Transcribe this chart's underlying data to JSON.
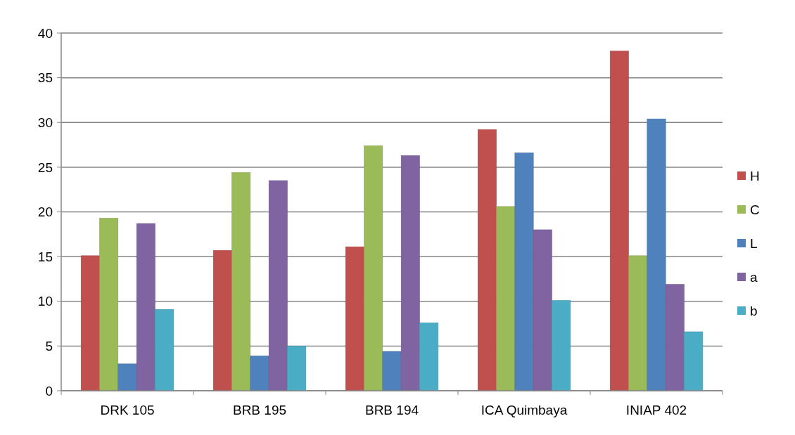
{
  "chart_data": {
    "type": "bar",
    "categories": [
      "DRK 105",
      "BRB 195",
      "BRB 194",
      "ICA Quimbaya",
      "INIAP 402"
    ],
    "series": [
      {
        "name": "H",
        "color": "#c0504d",
        "values": [
          15.1,
          15.7,
          16.1,
          29.2,
          38.0
        ]
      },
      {
        "name": "C",
        "color": "#9bbb59",
        "values": [
          19.3,
          24.4,
          27.4,
          20.6,
          15.1
        ]
      },
      {
        "name": "L",
        "color": "#4f81bd",
        "values": [
          3.0,
          3.9,
          4.4,
          26.6,
          30.4
        ]
      },
      {
        "name": "a",
        "color": "#8064a2",
        "values": [
          18.7,
          23.5,
          26.3,
          18.0,
          11.9
        ]
      },
      {
        "name": "b",
        "color": "#4bacc6",
        "values": [
          9.1,
          5.0,
          7.6,
          10.1,
          6.6
        ]
      }
    ],
    "ylim": [
      0,
      40
    ],
    "yticks": [
      0,
      5,
      10,
      15,
      20,
      25,
      30,
      35,
      40
    ],
    "grid": "y",
    "legend": "right"
  }
}
